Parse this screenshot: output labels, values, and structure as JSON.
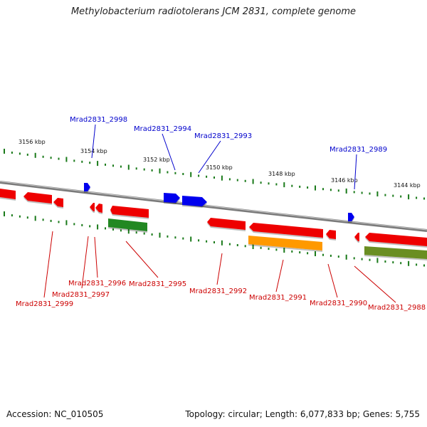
{
  "title": "Methylobacterium radiotolerans JCM 2831, complete genome",
  "footer": {
    "accession": "Accession: NC_010505",
    "summary": "Topology: circular; Length: 6,077,833 bp; Genes: 5,755"
  },
  "scale_labels": [
    "3156 kbp",
    "3154 kbp",
    "3152 kbp",
    "3150 kbp",
    "3148 kbp",
    "3146 kbp",
    "3144 kbp"
  ],
  "gene_labels_top": [
    "Mrad2831_2998",
    "Mrad2831_2994",
    "Mrad2831_2993",
    "Mrad2831_2989"
  ],
  "gene_labels_bottom": [
    "Mrad2831_2999",
    "Mrad2831_2997",
    "Mrad2831_2996",
    "Mrad2831_2995",
    "Mrad2831_2992",
    "Mrad2831_2991",
    "Mrad2831_2990",
    "Mrad2831_2988"
  ],
  "colors": {
    "forward_gene": "#0000ee",
    "reverse_gene": "#ee0000",
    "orange_gene": "#ff9900",
    "green_gene": "#228822",
    "olive_gene": "#6b8e23",
    "tick": "#1a7a1a",
    "backbone": "#8a8a8a",
    "label_top": "#0000cc",
    "label_bottom": "#cc0000"
  }
}
